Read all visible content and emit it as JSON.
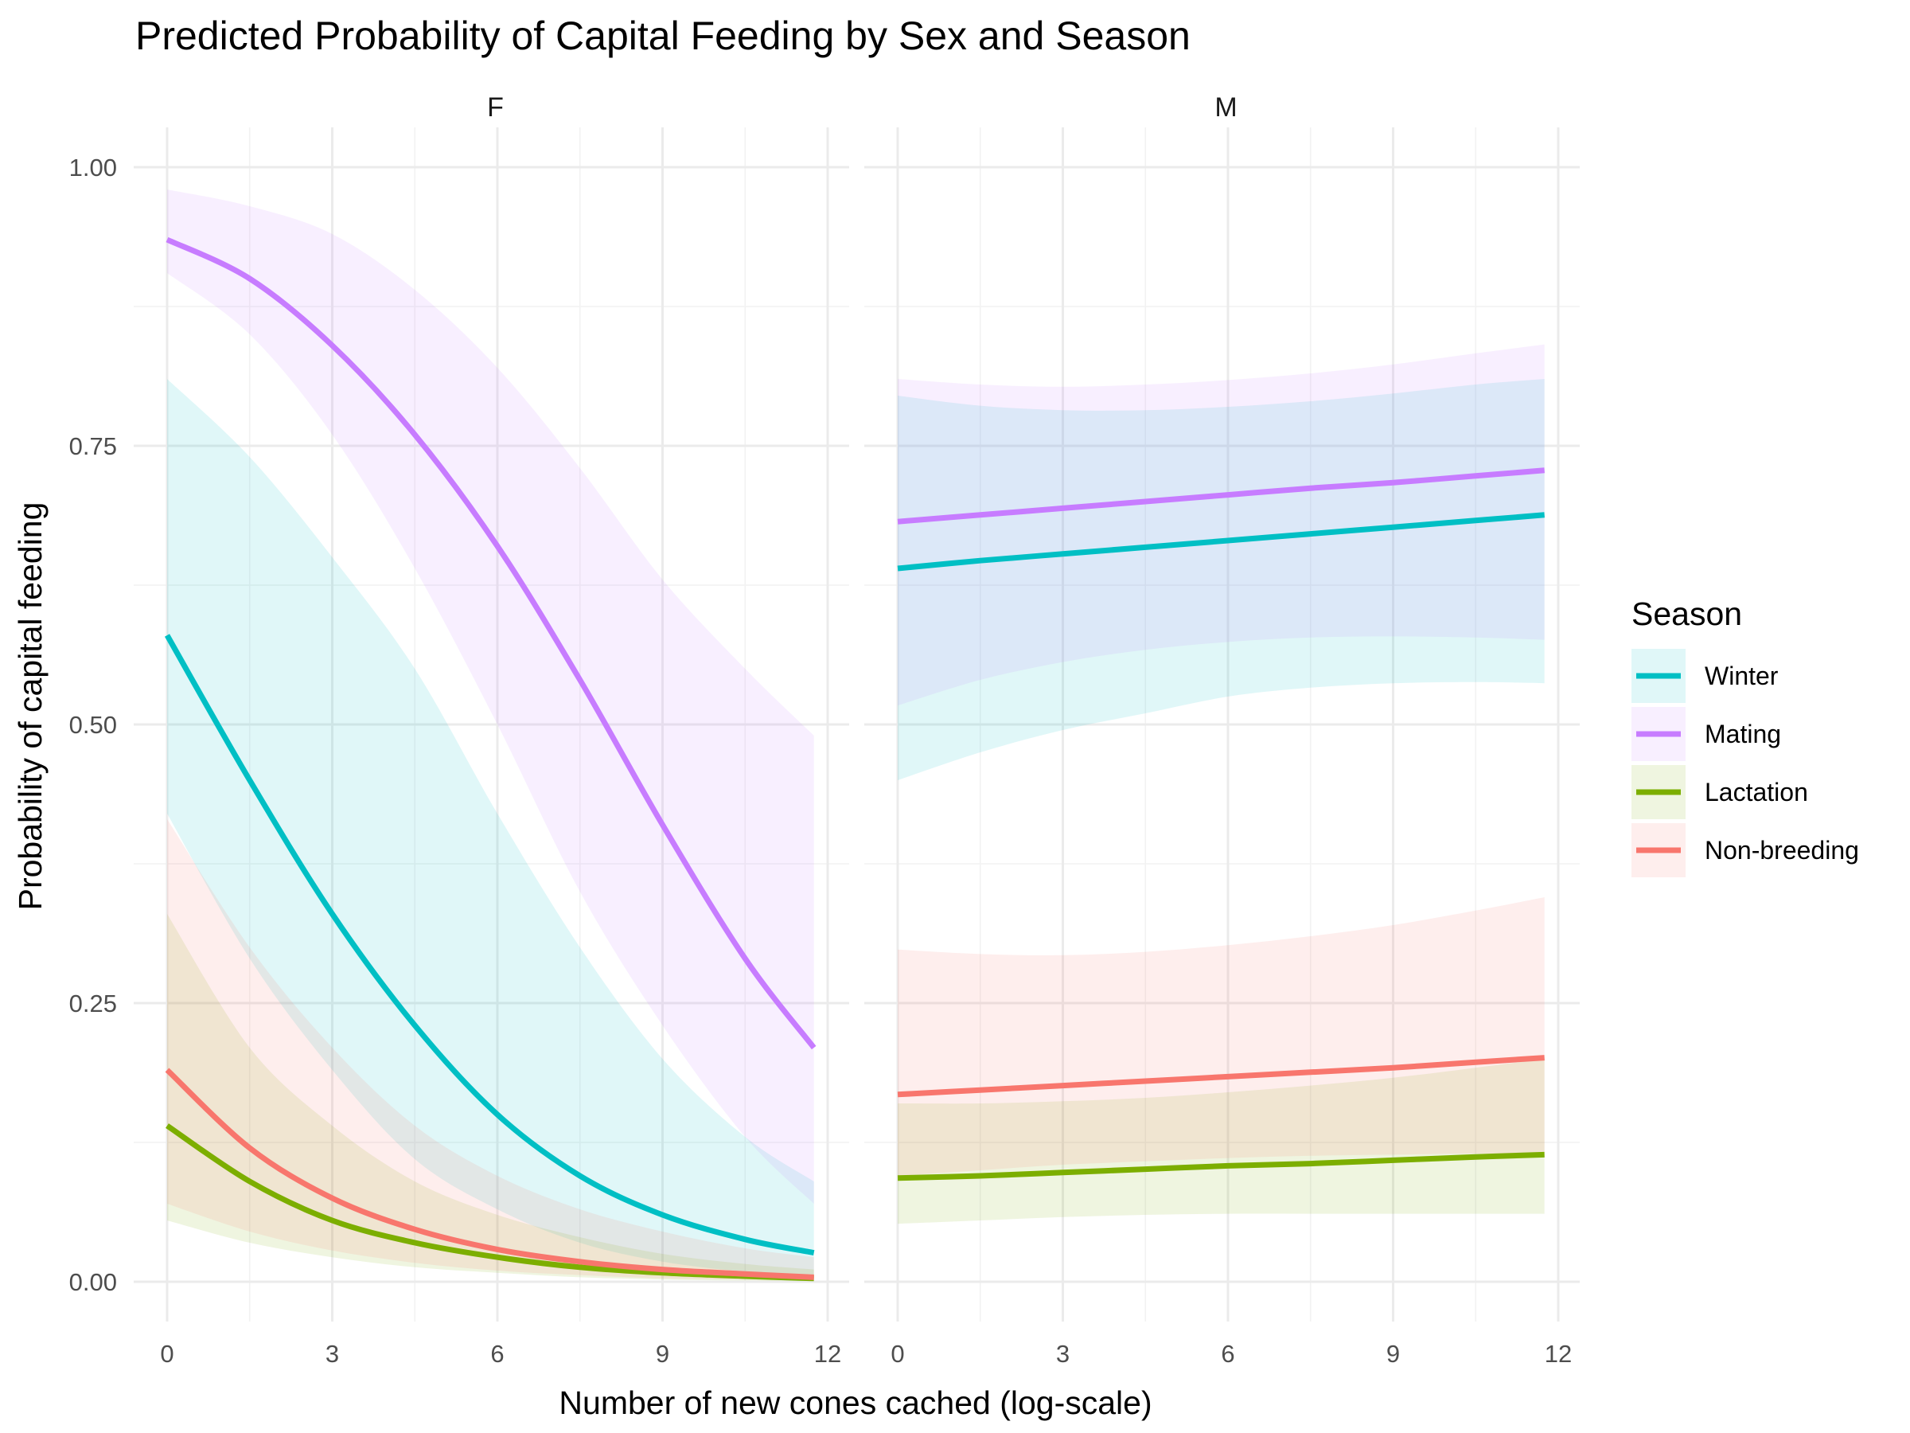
{
  "chart_data": {
    "type": "line",
    "title": "Predicted Probability of Capital Feeding by Sex and Season",
    "xlabel": "Number of new cones cached (log-scale)",
    "ylabel": "Probability of capital feeding",
    "xlim": [
      0,
      12
    ],
    "ylim": [
      0,
      1
    ],
    "x_ticks": [
      "0",
      "3",
      "6",
      "9",
      "12"
    ],
    "y_ticks": [
      "0.00",
      "0.25",
      "0.50",
      "0.75",
      "1.00"
    ],
    "grid": true,
    "legend": {
      "title": "Season",
      "placement": "right",
      "entries": [
        "Winter",
        "Mating",
        "Lactation",
        "Non-breeding"
      ]
    },
    "colors": {
      "Winter": "#00BFC4",
      "Mating": "#C77CFF",
      "Lactation": "#7CAE00",
      "Non-breeding": "#F8766D"
    },
    "x": [
      0,
      1.5,
      3,
      4.5,
      6,
      7.5,
      9,
      10.5,
      11.75
    ],
    "panels": [
      {
        "label": "F",
        "series": [
          {
            "name": "Winter",
            "values": [
              0.58,
              0.45,
              0.33,
              0.23,
              0.15,
              0.095,
              0.06,
              0.038,
              0.026
            ],
            "lower": [
              0.42,
              0.29,
              0.19,
              0.11,
              0.065,
              0.035,
              0.018,
              0.009,
              0.005
            ],
            "upper": [
              0.81,
              0.74,
              0.65,
              0.55,
              0.42,
              0.3,
              0.2,
              0.13,
              0.09
            ]
          },
          {
            "name": "Mating",
            "values": [
              0.935,
              0.9,
              0.84,
              0.76,
              0.66,
              0.54,
              0.41,
              0.29,
              0.21
            ],
            "lower": [
              0.905,
              0.85,
              0.76,
              0.64,
              0.5,
              0.35,
              0.23,
              0.13,
              0.07
            ],
            "upper": [
              0.98,
              0.965,
              0.94,
              0.89,
              0.82,
              0.73,
              0.63,
              0.55,
              0.49
            ]
          },
          {
            "name": "Lactation",
            "values": [
              0.14,
              0.09,
              0.055,
              0.035,
              0.022,
              0.013,
              0.008,
              0.005,
              0.003
            ],
            "lower": [
              0.055,
              0.035,
              0.022,
              0.013,
              0.008,
              0.004,
              0.002,
              0.001,
              0.0005
            ],
            "upper": [
              0.33,
              0.21,
              0.14,
              0.09,
              0.06,
              0.04,
              0.025,
              0.016,
              0.011
            ]
          },
          {
            "name": "Non-breeding",
            "values": [
              0.19,
              0.12,
              0.075,
              0.047,
              0.029,
              0.018,
              0.011,
              0.007,
              0.004
            ],
            "lower": [
              0.07,
              0.045,
              0.028,
              0.017,
              0.01,
              0.006,
              0.003,
              0.002,
              0.001
            ],
            "upper": [
              0.415,
              0.3,
              0.21,
              0.14,
              0.095,
              0.065,
              0.045,
              0.03,
              0.022
            ]
          }
        ]
      },
      {
        "label": "M",
        "series": [
          {
            "name": "Winter",
            "values": [
              0.64,
              0.647,
              0.653,
              0.659,
              0.665,
              0.671,
              0.677,
              0.683,
              0.688
            ],
            "lower": [
              0.45,
              0.475,
              0.495,
              0.51,
              0.525,
              0.533,
              0.537,
              0.538,
              0.537
            ],
            "upper": [
              0.795,
              0.786,
              0.782,
              0.782,
              0.785,
              0.79,
              0.797,
              0.805,
              0.81
            ]
          },
          {
            "name": "Mating",
            "values": [
              0.682,
              0.688,
              0.694,
              0.7,
              0.706,
              0.712,
              0.717,
              0.723,
              0.728
            ],
            "lower": [
              0.517,
              0.54,
              0.556,
              0.567,
              0.574,
              0.578,
              0.579,
              0.578,
              0.576
            ],
            "upper": [
              0.81,
              0.805,
              0.803,
              0.805,
              0.809,
              0.815,
              0.823,
              0.833,
              0.841
            ]
          },
          {
            "name": "Lactation",
            "values": [
              0.093,
              0.095,
              0.098,
              0.101,
              0.104,
              0.106,
              0.109,
              0.112,
              0.114
            ],
            "lower": [
              0.052,
              0.055,
              0.058,
              0.06,
              0.061,
              0.061,
              0.061,
              0.061,
              0.061
            ],
            "upper": [
              0.16,
              0.16,
              0.162,
              0.165,
              0.17,
              0.176,
              0.183,
              0.192,
              0.2
            ]
          },
          {
            "name": "Non-breeding",
            "values": [
              0.168,
              0.172,
              0.176,
              0.18,
              0.184,
              0.188,
              0.192,
              0.197,
              0.201
            ],
            "lower": [
              0.095,
              0.1,
              0.105,
              0.108,
              0.111,
              0.113,
              0.114,
              0.115,
              0.115
            ],
            "upper": [
              0.298,
              0.294,
              0.293,
              0.296,
              0.302,
              0.31,
              0.32,
              0.333,
              0.345
            ]
          }
        ]
      }
    ]
  }
}
